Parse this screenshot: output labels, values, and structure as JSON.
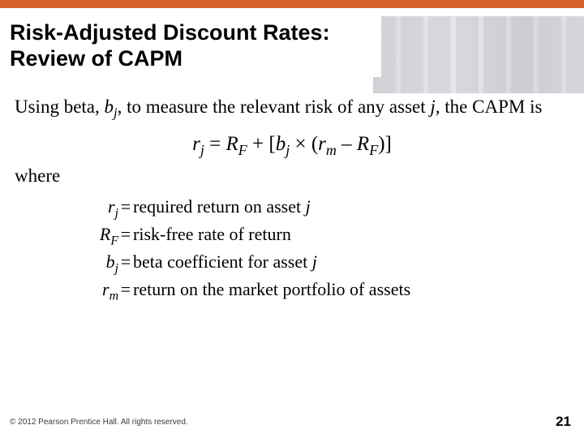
{
  "colors": {
    "accent_bar": "#d5632b",
    "background": "#ffffff",
    "text": "#000000",
    "footer_text": "#3a3a3a"
  },
  "typography": {
    "title_font": "Arial",
    "title_size_pt": 20,
    "title_weight": "bold",
    "body_font": "Times New Roman",
    "body_size_pt": 17,
    "equation_size_pt": 19,
    "defs_size_pt": 16,
    "footer_size_pt": 7,
    "pagenum_size_pt": 13
  },
  "title": {
    "line1": "Risk-Adjusted Discount Rates:",
    "line2": "Review of CAPM"
  },
  "intro": {
    "pre": "Using beta, ",
    "beta_sym": "b",
    "beta_sub": "j",
    "mid": ", to measure the relevant risk of any asset ",
    "asset": "j,",
    "post": " the CAPM is"
  },
  "equation": {
    "lhs_sym": "r",
    "lhs_sub": "j",
    "eq": " = ",
    "R": "R",
    "F": "F",
    "plus": " + [",
    "b": "b",
    "bj": "j",
    "times": " × (",
    "rm_sym": "r",
    "rm_sub": "m",
    "minus": " – ",
    "R2": "R",
    "F2": "F",
    "close": ")]"
  },
  "where_label": "where",
  "defs": [
    {
      "sym": "r",
      "sub": "j",
      "text": "required return on asset ",
      "tail_italic": "j"
    },
    {
      "sym": "R",
      "sub": "F",
      "text": "risk-free rate of return",
      "tail_italic": ""
    },
    {
      "sym": "b",
      "sub": "j",
      "text": "beta coefficient for asset ",
      "tail_italic": "j"
    },
    {
      "sym": "r",
      "sub": "m",
      "text": "return on the market portfolio of assets",
      "tail_italic": ""
    }
  ],
  "footer": "© 2012 Pearson Prentice Hall. All rights reserved.",
  "page_number": "21"
}
